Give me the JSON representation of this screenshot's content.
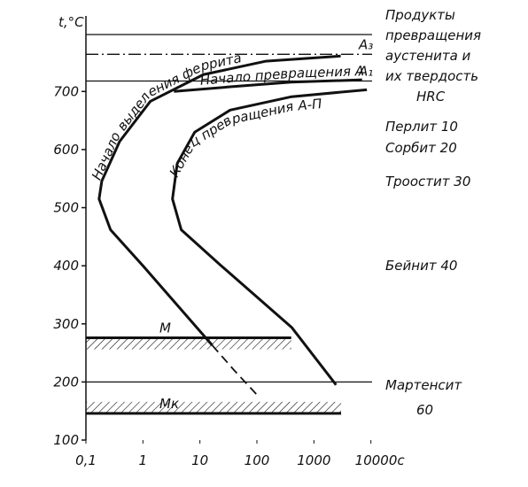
{
  "chart_data": {
    "type": "line",
    "y_label": "t,°C",
    "xscale": "log",
    "xlim": [
      0.1,
      15000
    ],
    "ylim": [
      100,
      830
    ],
    "xticks": [
      {
        "value": 0.1,
        "label": "0,1"
      },
      1,
      10,
      100,
      1000,
      {
        "value": 10000,
        "label": "10000c"
      }
    ],
    "yticks": [
      100,
      200,
      300,
      400,
      500,
      600,
      700
    ],
    "series": [
      {
        "name": "Начало выделения феррита",
        "color": "#111111",
        "x": [
          16.5,
          1.0,
          0.27,
          0.17,
          0.19,
          0.39,
          1.35,
          11.5,
          141,
          2950
        ],
        "values": [
          263,
          400,
          462,
          515,
          546,
          614,
          683,
          729,
          752,
          761
        ]
      },
      {
        "name": "Начало превращения А-П",
        "color": "#111111",
        "x": [
          3.5,
          34,
          400,
          7000
        ],
        "values": [
          700,
          708,
          716,
          720
        ]
      },
      {
        "name": "Конец превращения А-П",
        "color": "#111111",
        "x": [
          2450,
          407,
          23,
          4.7,
          3.3,
          4.0,
          8.1,
          34,
          407,
          8500
        ],
        "values": [
          195,
          294,
          401,
          462,
          515,
          576,
          630,
          668,
          691,
          703
        ]
      },
      {
        "color": "#111111",
        "dash": true,
        "x": [
          16.5,
          40,
          100
        ],
        "values": [
          263,
          220,
          178
        ]
      }
    ],
    "levels": [
      {
        "value": 798
      },
      {
        "label": "A₃",
        "value": 764,
        "style": "dashdot"
      },
      {
        "label": "A₁",
        "value": 718
      },
      {
        "label": "M",
        "value": 276,
        "x_end": 400,
        "hatch": "below"
      },
      {
        "value": 200
      },
      {
        "label": "Mк",
        "value": 146,
        "x_end": 3000,
        "hatch": "above"
      }
    ]
  },
  "products": {
    "title": [
      "Продукты",
      "превращения",
      "аустенита и",
      "их твердость",
      "HRC"
    ],
    "items": [
      "Перлит 10",
      "Сорбит 20",
      "Троостит 30",
      "Бейнит 40",
      "Мартенсит",
      "60"
    ]
  }
}
